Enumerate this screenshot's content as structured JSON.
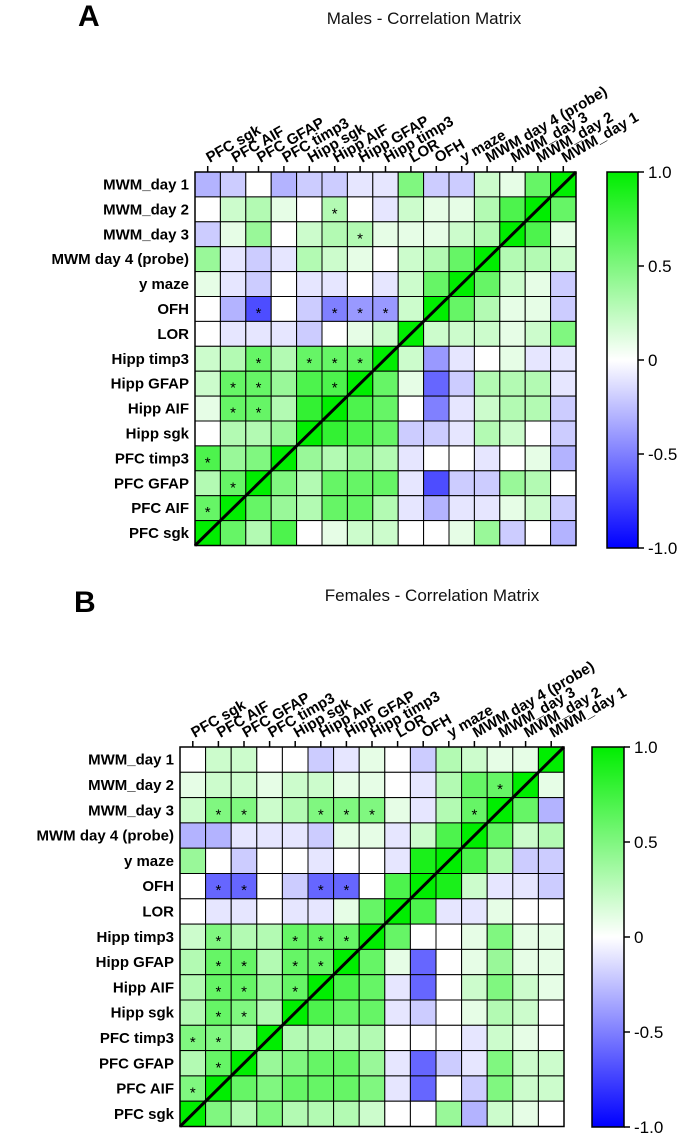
{
  "chart_data": [
    {
      "type": "heatmap",
      "panel_label": "A",
      "title": "Males - Correlation Matrix",
      "row_labels": [
        "MWM_day 1",
        "MWM_day 2",
        "MWM_day 3",
        "MWM day 4 (probe)",
        "y maze",
        "OFH",
        "LOR",
        "Hipp  timp3",
        "Hipp GFAP",
        "Hipp AIF",
        "Hipp sgk",
        "PFC timp3",
        "PFC GFAP",
        "PFC AIF",
        "PFC sgk"
      ],
      "column_labels": [
        "PFC sgk",
        "PFC AIF",
        "PFC GFAP",
        "PFC timp3",
        "Hipp sgk",
        "Hipp AIF",
        "Hipp GFAP",
        "Hipp  timp3",
        "LOR",
        "OFH",
        "y maze",
        "MWM day 4 (probe)",
        "MWM_day 3",
        "MWM_day 2",
        "MWM_day 1"
      ],
      "values": [
        [
          -0.3,
          -0.2,
          0.0,
          -0.3,
          -0.2,
          -0.2,
          -0.1,
          -0.1,
          0.5,
          -0.2,
          -0.2,
          0.2,
          0.1,
          0.6,
          1.0
        ],
        [
          0.0,
          0.2,
          0.3,
          0.1,
          0.0,
          0.3,
          0.0,
          -0.1,
          0.2,
          0.1,
          0.1,
          0.3,
          0.7,
          1.0,
          0.6
        ],
        [
          -0.2,
          0.1,
          0.4,
          0.0,
          0.2,
          0.3,
          0.3,
          0.1,
          0.1,
          0.1,
          0.2,
          0.3,
          1.0,
          0.7,
          0.1
        ],
        [
          0.4,
          -0.1,
          -0.2,
          -0.1,
          0.3,
          0.2,
          0.1,
          0.0,
          0.2,
          0.3,
          0.6,
          1.0,
          0.3,
          0.3,
          0.2
        ],
        [
          0.1,
          -0.1,
          -0.2,
          0.0,
          -0.1,
          -0.1,
          0.0,
          -0.1,
          0.2,
          0.6,
          1.0,
          0.6,
          0.2,
          0.1,
          -0.2
        ],
        [
          0.0,
          -0.3,
          -0.7,
          0.0,
          -0.2,
          -0.5,
          -0.4,
          -0.4,
          0.2,
          1.0,
          0.6,
          0.3,
          0.1,
          0.1,
          -0.2
        ],
        [
          0.0,
          -0.1,
          -0.1,
          -0.1,
          -0.2,
          0.0,
          0.1,
          0.2,
          1.0,
          0.2,
          0.2,
          0.2,
          0.1,
          0.2,
          0.5
        ],
        [
          0.2,
          0.3,
          0.6,
          0.3,
          0.6,
          0.6,
          0.6,
          1.0,
          0.2,
          -0.4,
          -0.1,
          0.0,
          0.1,
          -0.1,
          -0.1
        ],
        [
          0.2,
          0.6,
          0.6,
          0.4,
          0.7,
          0.7,
          1.0,
          0.6,
          0.1,
          -0.6,
          -0.2,
          0.3,
          0.3,
          0.3,
          -0.1
        ],
        [
          0.1,
          0.6,
          0.6,
          0.3,
          0.8,
          1.0,
          0.7,
          0.6,
          0.0,
          -0.5,
          -0.1,
          0.2,
          0.3,
          0.3,
          -0.2
        ],
        [
          0.0,
          0.3,
          0.3,
          0.4,
          1.0,
          0.8,
          0.7,
          0.6,
          -0.2,
          -0.2,
          -0.1,
          0.3,
          0.2,
          0.0,
          -0.2
        ],
        [
          0.7,
          0.4,
          0.5,
          1.0,
          0.4,
          0.3,
          0.4,
          0.3,
          -0.1,
          0.0,
          0.0,
          -0.1,
          0.0,
          0.1,
          -0.3
        ],
        [
          0.3,
          0.6,
          1.0,
          0.5,
          0.3,
          0.6,
          0.6,
          0.6,
          -0.1,
          -0.7,
          -0.2,
          -0.2,
          0.4,
          0.3,
          0.0
        ],
        [
          0.6,
          1.0,
          0.6,
          0.4,
          0.3,
          0.6,
          0.6,
          0.3,
          -0.1,
          -0.3,
          -0.1,
          -0.1,
          0.1,
          0.2,
          -0.2
        ],
        [
          1.0,
          0.6,
          0.3,
          0.7,
          0.0,
          0.1,
          0.2,
          0.2,
          0.0,
          0.0,
          0.1,
          0.4,
          -0.2,
          0.0,
          -0.3
        ]
      ],
      "significant": [
        [
          1,
          5
        ],
        [
          2,
          6
        ],
        [
          5,
          2
        ],
        [
          5,
          5
        ],
        [
          5,
          6
        ],
        [
          5,
          7
        ],
        [
          7,
          2
        ],
        [
          7,
          4
        ],
        [
          7,
          5
        ],
        [
          7,
          6
        ],
        [
          8,
          1
        ],
        [
          8,
          2
        ],
        [
          8,
          5
        ],
        [
          9,
          1
        ],
        [
          9,
          2
        ],
        [
          11,
          0
        ],
        [
          12,
          1
        ],
        [
          13,
          0
        ]
      ],
      "significance_marker": "*",
      "colorbar": {
        "min": -1.0,
        "max": 1.0,
        "ticks": [
          1.0,
          0.5,
          0,
          -0.5,
          -1.0
        ],
        "tick_labels": [
          "1.0",
          "0.5",
          "0",
          "-0.5",
          "-1.0"
        ],
        "colors": {
          "low": "#0000ff",
          "mid": "#ffffff",
          "high": "#00ee00"
        }
      }
    },
    {
      "type": "heatmap",
      "panel_label": "B",
      "title": "Females - Correlation Matrix",
      "row_labels": [
        "MWM_day 1",
        "MWM_day 2",
        "MWM_day 3",
        "MWM day 4 (probe)",
        "y maze",
        "OFH",
        "LOR",
        "Hipp timp3",
        "Hipp GFAP",
        "Hipp AIF",
        "Hipp sgk",
        "PFC timp3",
        "PFC GFAP",
        "PFC AIF",
        "PFC sgk"
      ],
      "column_labels": [
        "PFC sgk",
        "PFC AIF",
        "PFC GFAP",
        "PFC timp3",
        "Hipp sgk",
        "Hipp AIF",
        "Hipp GFAP",
        "Hipp timp3",
        "LOR",
        "OFH",
        "y maze",
        "MWM day 4 (probe)",
        "MWM_day 3",
        "MWM_day 2",
        "MWM_day 1"
      ],
      "values": [
        [
          0.0,
          0.2,
          0.2,
          0.0,
          0.0,
          -0.2,
          -0.1,
          0.1,
          0.0,
          -0.2,
          0.3,
          0.2,
          0.1,
          0.1,
          1.0
        ],
        [
          0.1,
          0.2,
          0.2,
          0.1,
          0.2,
          0.2,
          0.1,
          0.1,
          0.0,
          -0.1,
          0.3,
          0.6,
          0.6,
          1.0,
          0.1
        ],
        [
          0.2,
          0.5,
          0.5,
          0.2,
          0.3,
          0.5,
          0.5,
          0.5,
          0.1,
          -0.1,
          0.3,
          0.6,
          1.0,
          0.6,
          -0.3
        ],
        [
          -0.3,
          -0.3,
          -0.1,
          -0.1,
          -0.1,
          -0.2,
          0.1,
          0.1,
          -0.1,
          0.2,
          0.7,
          1.0,
          0.6,
          0.2,
          0.3
        ],
        [
          0.4,
          0.0,
          -0.2,
          0.0,
          0.0,
          -0.1,
          0.0,
          0.0,
          -0.1,
          0.9,
          1.0,
          0.7,
          0.3,
          -0.2,
          -0.2
        ],
        [
          0.0,
          -0.6,
          -0.6,
          0.0,
          -0.2,
          -0.6,
          -0.6,
          0.0,
          0.7,
          1.0,
          0.9,
          0.2,
          -0.1,
          -0.1,
          -0.2
        ],
        [
          0.0,
          -0.1,
          -0.1,
          0.0,
          -0.1,
          -0.1,
          0.1,
          0.6,
          1.0,
          0.7,
          -0.1,
          -0.1,
          0.1,
          0.0,
          0.0
        ],
        [
          0.2,
          0.5,
          0.3,
          0.3,
          0.6,
          0.6,
          0.6,
          1.0,
          0.6,
          0.0,
          0.0,
          0.1,
          0.5,
          0.1,
          0.1
        ],
        [
          0.3,
          0.6,
          0.6,
          0.3,
          0.6,
          0.6,
          1.0,
          0.6,
          0.1,
          -0.6,
          0.0,
          0.1,
          0.4,
          0.1,
          0.1
        ],
        [
          0.3,
          0.6,
          0.6,
          0.4,
          0.6,
          1.0,
          0.7,
          0.6,
          -0.1,
          -0.6,
          0.0,
          0.2,
          0.5,
          0.2,
          0.1
        ],
        [
          0.3,
          0.6,
          0.5,
          0.3,
          1.0,
          0.7,
          0.6,
          0.6,
          -0.1,
          -0.2,
          0.0,
          0.1,
          0.3,
          0.2,
          0.0
        ],
        [
          0.5,
          0.5,
          0.3,
          1.0,
          0.3,
          0.3,
          0.3,
          0.3,
          0.0,
          0.0,
          0.0,
          -0.1,
          0.2,
          0.1,
          0.0
        ],
        [
          0.3,
          0.6,
          1.0,
          0.4,
          0.5,
          0.6,
          0.6,
          0.4,
          -0.1,
          -0.6,
          -0.2,
          -0.1,
          0.5,
          0.2,
          0.2
        ],
        [
          0.5,
          1.0,
          0.6,
          0.5,
          0.6,
          0.6,
          0.6,
          0.5,
          -0.1,
          -0.6,
          0.0,
          -0.2,
          0.5,
          0.2,
          0.2
        ],
        [
          1.0,
          0.5,
          0.3,
          0.5,
          0.3,
          0.3,
          0.3,
          0.2,
          0.0,
          0.0,
          0.4,
          -0.3,
          0.2,
          0.1,
          0.0
        ]
      ],
      "significant": [
        [
          1,
          12
        ],
        [
          2,
          1
        ],
        [
          2,
          2
        ],
        [
          2,
          5
        ],
        [
          2,
          6
        ],
        [
          2,
          7
        ],
        [
          2,
          11
        ],
        [
          5,
          1
        ],
        [
          5,
          2
        ],
        [
          5,
          5
        ],
        [
          5,
          6
        ],
        [
          7,
          1
        ],
        [
          7,
          4
        ],
        [
          7,
          5
        ],
        [
          7,
          6
        ],
        [
          8,
          1
        ],
        [
          8,
          2
        ],
        [
          8,
          4
        ],
        [
          8,
          5
        ],
        [
          9,
          1
        ],
        [
          9,
          2
        ],
        [
          9,
          4
        ],
        [
          10,
          1
        ],
        [
          10,
          2
        ],
        [
          11,
          0
        ],
        [
          11,
          1
        ],
        [
          12,
          1
        ],
        [
          13,
          0
        ]
      ],
      "significance_marker": "*",
      "colorbar": {
        "min": -1.0,
        "max": 1.0,
        "ticks": [
          1.0,
          0.5,
          0,
          -0.5,
          -1.0
        ],
        "tick_labels": [
          "1.0",
          "0.5",
          "0",
          "-0.5",
          "-1.0"
        ],
        "colors": {
          "low": "#0000ff",
          "mid": "#ffffff",
          "high": "#00ee00"
        }
      }
    }
  ]
}
